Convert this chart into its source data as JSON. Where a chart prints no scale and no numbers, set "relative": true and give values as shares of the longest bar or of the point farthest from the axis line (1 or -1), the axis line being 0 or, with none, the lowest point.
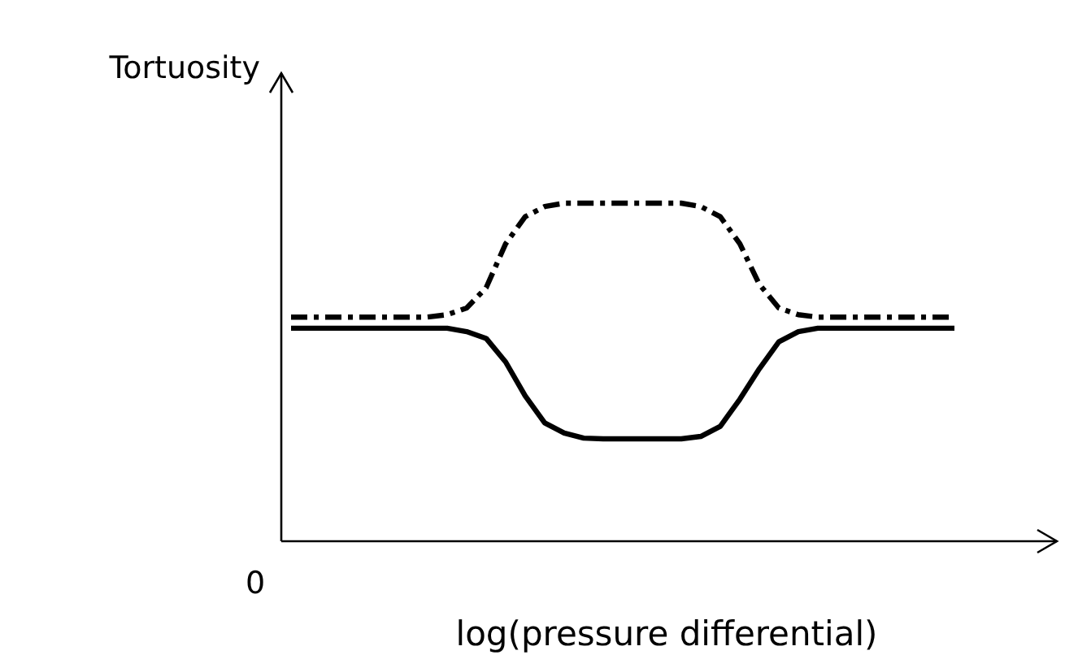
{
  "chart_data": {
    "type": "line",
    "relative": true,
    "xlabel": "log(pressure differential)",
    "ylabel": "Tortuosity",
    "annotations": [
      "0"
    ],
    "marker": "none",
    "categories": [
      null,
      null,
      null,
      null,
      null,
      null,
      null,
      null,
      null,
      null,
      null,
      null,
      null,
      null,
      null,
      null,
      null,
      null,
      null,
      null,
      null,
      null,
      null,
      null,
      null,
      null,
      null,
      null,
      null,
      null,
      null,
      null,
      null,
      null,
      null,
      null,
      null,
      null,
      null,
      null
    ],
    "series": [
      {
        "color": "#000000",
        "line_style": "dashed",
        "values": [
          0.663,
          0.663,
          0.663,
          0.663,
          0.663,
          0.663,
          0.663,
          0.663,
          0.67,
          0.69,
          0.75,
          0.88,
          0.96,
          0.99,
          1,
          1,
          1,
          1,
          1,
          1,
          1,
          0.99,
          0.96,
          0.88,
          0.76,
          0.69,
          0.67,
          0.663,
          0.663,
          0.663,
          0.663,
          0.663,
          0.663,
          0.663,
          0.663,
          null,
          null,
          null,
          null,
          null
        ]
      },
      {
        "color": "#000000",
        "line_style": "solid",
        "values": [
          0.63,
          0.63,
          0.63,
          0.63,
          0.63,
          0.63,
          0.63,
          0.63,
          0.63,
          0.62,
          0.6,
          0.53,
          0.43,
          0.35,
          0.32,
          0.305,
          0.303,
          0.303,
          0.303,
          0.303,
          0.303,
          0.31,
          0.34,
          0.42,
          0.51,
          0.59,
          0.62,
          0.63,
          0.63,
          0.63,
          0.63,
          0.63,
          0.63,
          0.63,
          0.63,
          null,
          null,
          null,
          null,
          null
        ]
      }
    ]
  }
}
